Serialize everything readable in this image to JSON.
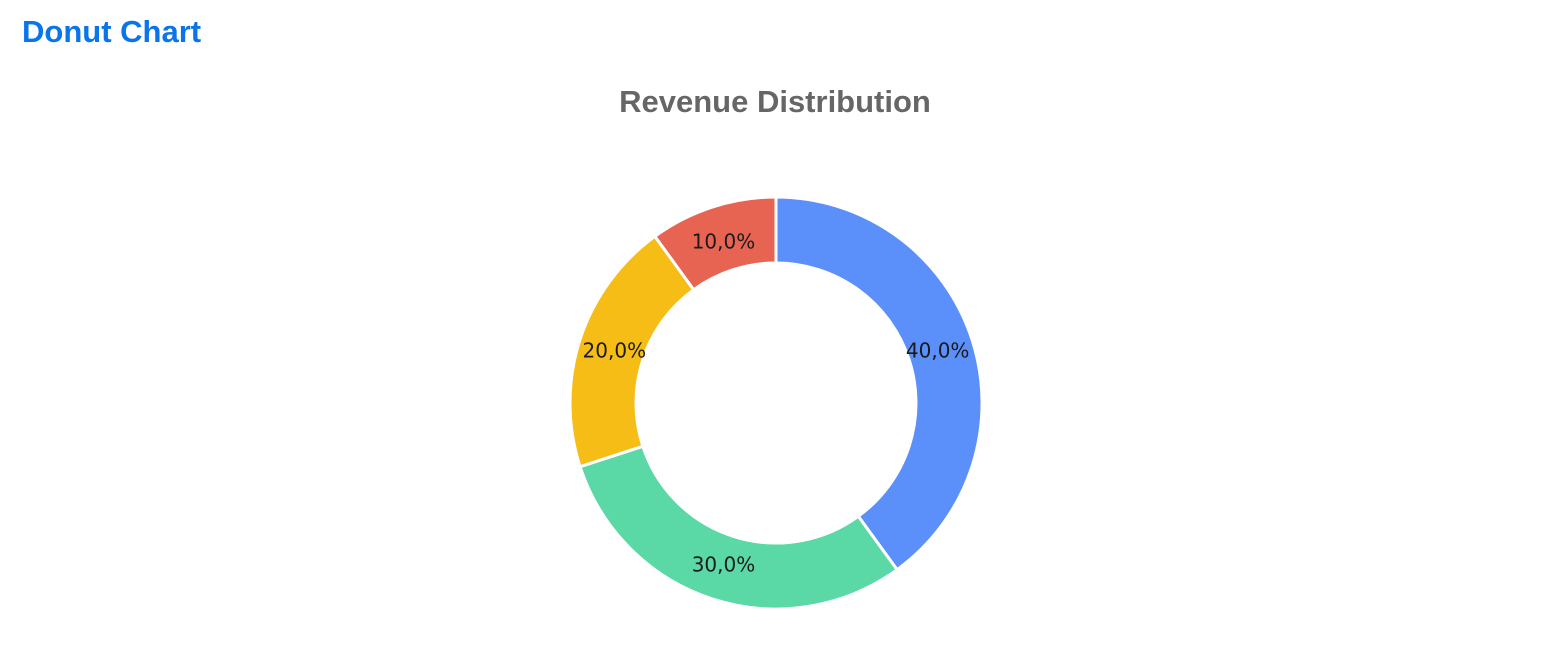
{
  "header": {
    "title": "Donut Chart"
  },
  "chart_data": {
    "type": "pie",
    "donut": true,
    "title": "Revenue Distribution",
    "slices": [
      {
        "value": 40,
        "label": "40,0%",
        "color": "#5b8ff9"
      },
      {
        "value": 30,
        "label": "30,0%",
        "color": "#5ad8a6"
      },
      {
        "value": 20,
        "label": "20,0%",
        "color": "#f6bd16"
      },
      {
        "value": 10,
        "label": "10,0%",
        "color": "#e86452"
      }
    ],
    "legend": "none"
  }
}
